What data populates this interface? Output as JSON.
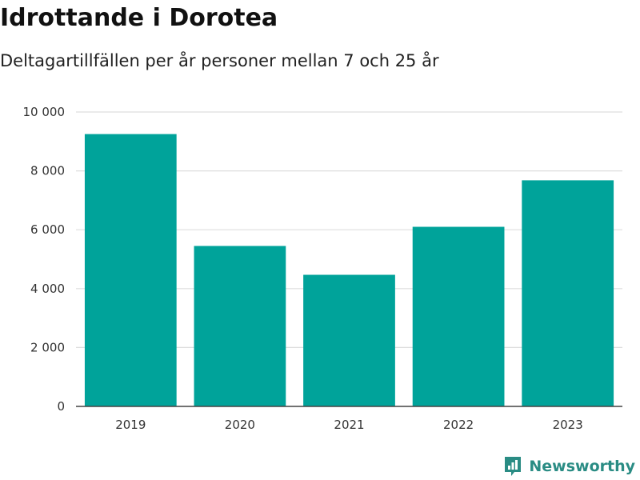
{
  "header": {
    "title": "Idrottande i Dorotea",
    "subtitle": "Deltagartillfällen per år personer mellan 7 och 25 år"
  },
  "brand": {
    "name": "Newsworthy",
    "icon": "newsworthy-logo-icon"
  },
  "colors": {
    "bar": "#00a39a",
    "grid": "#dddddd",
    "axis": "#444444",
    "brand": "#2a8c84"
  },
  "chart_data": {
    "type": "bar",
    "categories": [
      "2019",
      "2020",
      "2021",
      "2022",
      "2023"
    ],
    "values": [
      9250,
      5450,
      4470,
      6100,
      7680
    ],
    "ylim": [
      0,
      10000
    ],
    "yticks": [
      0,
      2000,
      4000,
      6000,
      8000,
      10000
    ],
    "ytick_labels": [
      "0",
      "2 000",
      "4 000",
      "6 000",
      "8 000",
      "10 000"
    ],
    "grid": true
  }
}
